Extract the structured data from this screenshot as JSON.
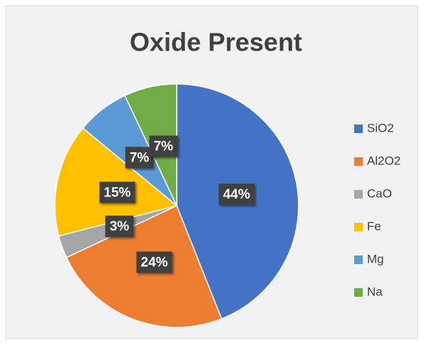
{
  "chart_data": {
    "type": "pie",
    "title": "Oxide Present",
    "categories": [
      "SiO2",
      "Al2O2",
      "CaO",
      "Fe",
      "Mg",
      "Na"
    ],
    "values": [
      44,
      24,
      3,
      15,
      7,
      7
    ],
    "value_labels": [
      "44%",
      "24%",
      "3%",
      "15%",
      "7%",
      "7%"
    ],
    "colors": [
      "#4472c4",
      "#ed7d31",
      "#a5a5a5",
      "#ffc000",
      "#5b9bd5",
      "#70ad47"
    ],
    "legend": "right"
  }
}
